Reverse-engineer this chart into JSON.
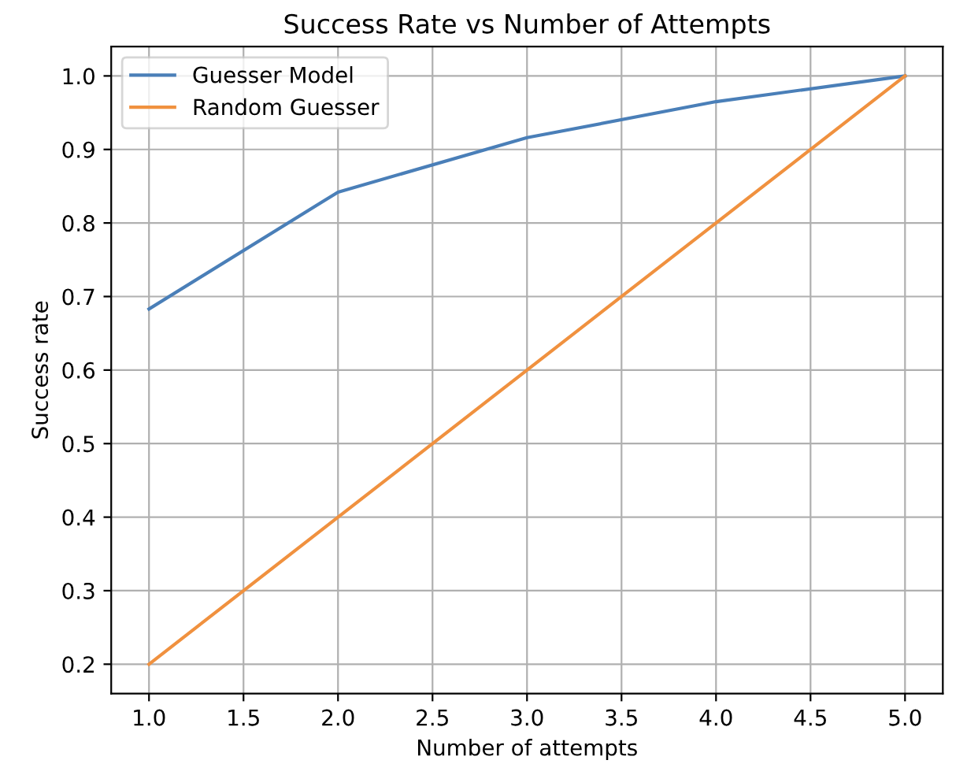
{
  "chart_data": {
    "type": "line",
    "title": "Success Rate vs Number of Attempts",
    "xlabel": "Number of attempts",
    "ylabel": "Success rate",
    "x": [
      1,
      2,
      3,
      4,
      5
    ],
    "series": [
      {
        "name": "Guesser Model",
        "color": "#4a7fb8",
        "values": [
          0.683,
          0.842,
          0.916,
          0.965,
          1.0
        ]
      },
      {
        "name": "Random Guesser",
        "color": "#f0913f",
        "values": [
          0.2,
          0.4,
          0.6,
          0.8,
          1.0
        ]
      }
    ],
    "xlim": [
      0.8,
      5.2
    ],
    "ylim": [
      0.16,
      1.04
    ],
    "xticks": [
      {
        "value": 1,
        "label": "1.0"
      },
      {
        "value": 1.5,
        "label": "1.5"
      },
      {
        "value": 2,
        "label": "2.0"
      },
      {
        "value": 2.5,
        "label": "2.5"
      },
      {
        "value": 3,
        "label": "3.0"
      },
      {
        "value": 3.5,
        "label": "3.5"
      },
      {
        "value": 4,
        "label": "4.0"
      },
      {
        "value": 4.5,
        "label": "4.5"
      },
      {
        "value": 5,
        "label": "5.0"
      }
    ],
    "yticks": [
      {
        "value": 0.2,
        "label": "0.2"
      },
      {
        "value": 0.3,
        "label": "0.3"
      },
      {
        "value": 0.4,
        "label": "0.4"
      },
      {
        "value": 0.5,
        "label": "0.5"
      },
      {
        "value": 0.6,
        "label": "0.6"
      },
      {
        "value": 0.7,
        "label": "0.7"
      },
      {
        "value": 0.8,
        "label": "0.8"
      },
      {
        "value": 0.9,
        "label": "0.9"
      },
      {
        "value": 1.0,
        "label": "1.0"
      }
    ],
    "grid": true,
    "legend": "top left",
    "marker": "none",
    "line_style": "solid"
  }
}
